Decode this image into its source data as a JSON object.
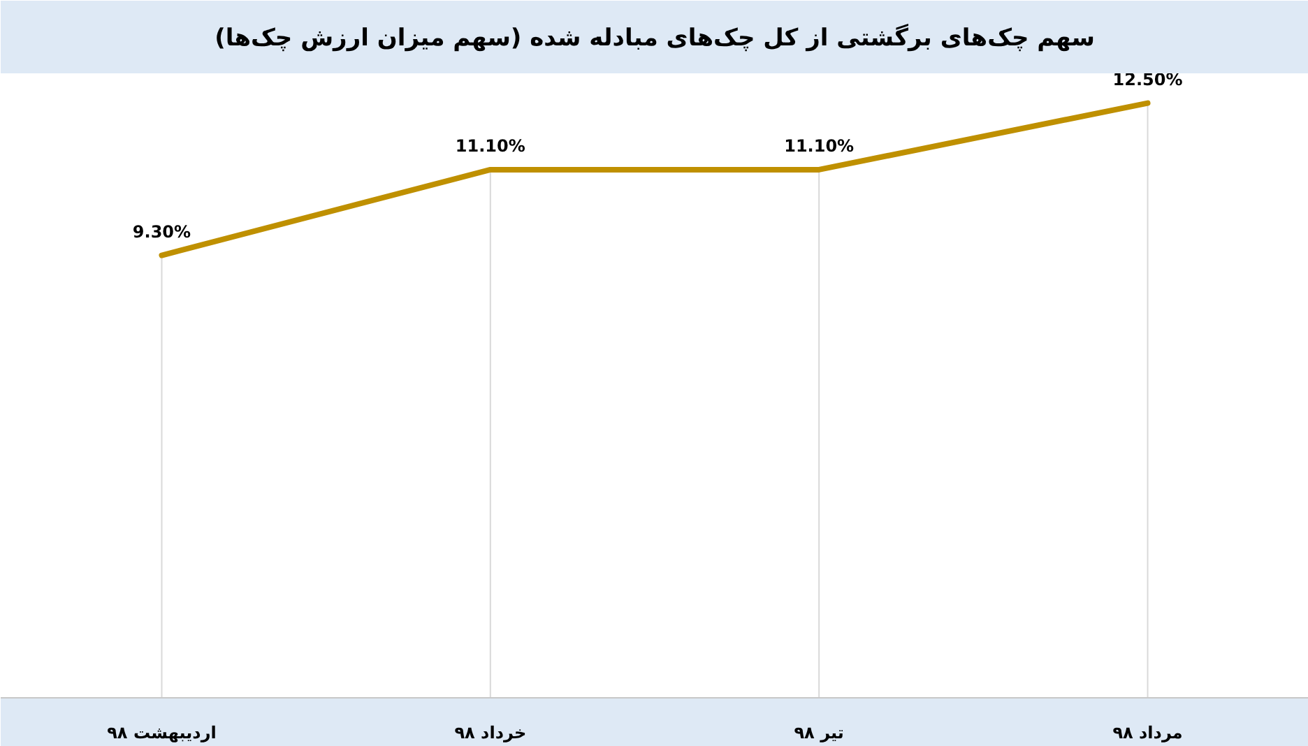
{
  "chart_data": {
    "type": "line",
    "title": "سهم چک‌های برگشتی از کل چک‌های مبادله شده (سهم میزان ارزش چک‌ها)",
    "categories": [
      "اردیبهشت ۹۸",
      "خرداد ۹۸",
      "تیر ۹۸",
      "مرداد ۹۸"
    ],
    "series": [
      {
        "color": "#bf9000",
        "values": [
          9.3,
          11.1,
          11.1,
          12.5
        ],
        "value_labels": [
          "9.30%",
          "11.10%",
          "11.10%",
          "12.50%"
        ]
      }
    ],
    "grid": "x",
    "marker": "none",
    "line_style": "solid"
  }
}
